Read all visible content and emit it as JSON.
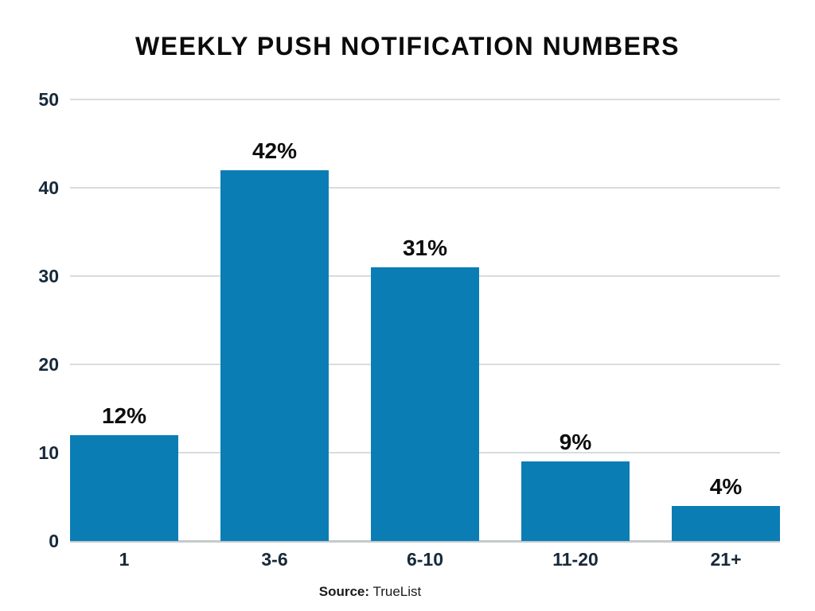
{
  "chart_data": {
    "type": "bar",
    "title": "WEEKLY PUSH NOTIFICATION NUMBERS",
    "categories": [
      "1",
      "3-6",
      "6-10",
      "11-20",
      "21+"
    ],
    "values": [
      12,
      42,
      31,
      9,
      4
    ],
    "value_labels": [
      "12%",
      "42%",
      "31%",
      "9%",
      "4%"
    ],
    "xlabel": "",
    "ylabel": "",
    "ylim": [
      0,
      50
    ],
    "yticks": [
      0,
      10,
      20,
      30,
      40,
      50
    ],
    "grid": "horizontal",
    "legend_position": "none",
    "bar_color": "#0b7db5",
    "gridline_color": "#d8dce0",
    "baseline_color": "#c6cacd",
    "tick_label_color": "#17293a",
    "value_label_color": "#0d0d0d",
    "title_color": "#0b0b0c"
  },
  "footer": {
    "source_label": "Source:",
    "source_value": "TrueList"
  }
}
